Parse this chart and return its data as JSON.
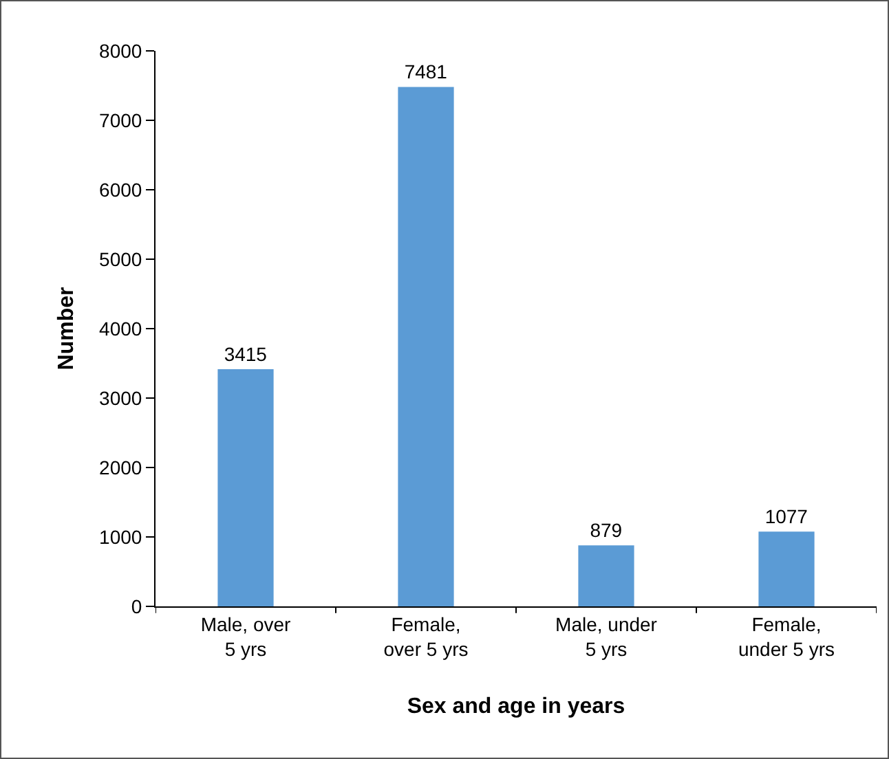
{
  "chart_data": {
    "type": "bar",
    "xlabel": "Sex and age in years",
    "ylabel": "Number",
    "categories": [
      "Male, over\n5 yrs",
      "Female,\nover 5 yrs",
      "Male, under\n5 yrs",
      "Female,\nunder 5 yrs"
    ],
    "values": [
      3415,
      7481,
      879,
      1077
    ],
    "color": "#5b9bd5",
    "ylim": [
      0,
      8000
    ],
    "yticks": [
      0,
      1000,
      2000,
      3000,
      4000,
      5000,
      6000,
      7000,
      8000
    ],
    "grid": false,
    "data_labels": true
  }
}
